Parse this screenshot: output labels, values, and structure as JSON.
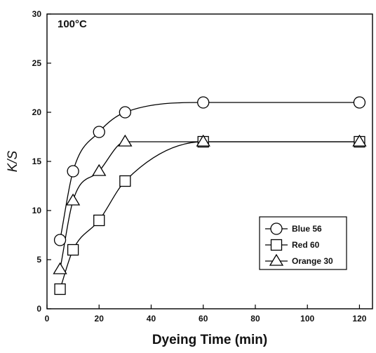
{
  "chart_data": {
    "type": "line",
    "annotation": "100°C",
    "xlabel": "Dyeing Time (min)",
    "ylabel": "K/S",
    "xlim": [
      0,
      125
    ],
    "ylim": [
      0,
      30
    ],
    "xticks": [
      0,
      20,
      40,
      60,
      80,
      100,
      120
    ],
    "yticks": [
      0,
      5,
      10,
      15,
      20,
      25,
      30
    ],
    "grid": false,
    "legend_position": "bottom-right",
    "x": [
      5,
      10,
      20,
      30,
      60,
      120
    ],
    "series": [
      {
        "name": "Blue 56",
        "marker": "circle",
        "values": [
          7,
          14,
          18,
          20,
          21,
          21
        ]
      },
      {
        "name": "Red 60",
        "marker": "square",
        "values": [
          2,
          6,
          9,
          13,
          17,
          17
        ]
      },
      {
        "name": "Orange 30",
        "marker": "triangle",
        "values": [
          4,
          11,
          14,
          17,
          17,
          17
        ]
      }
    ]
  }
}
